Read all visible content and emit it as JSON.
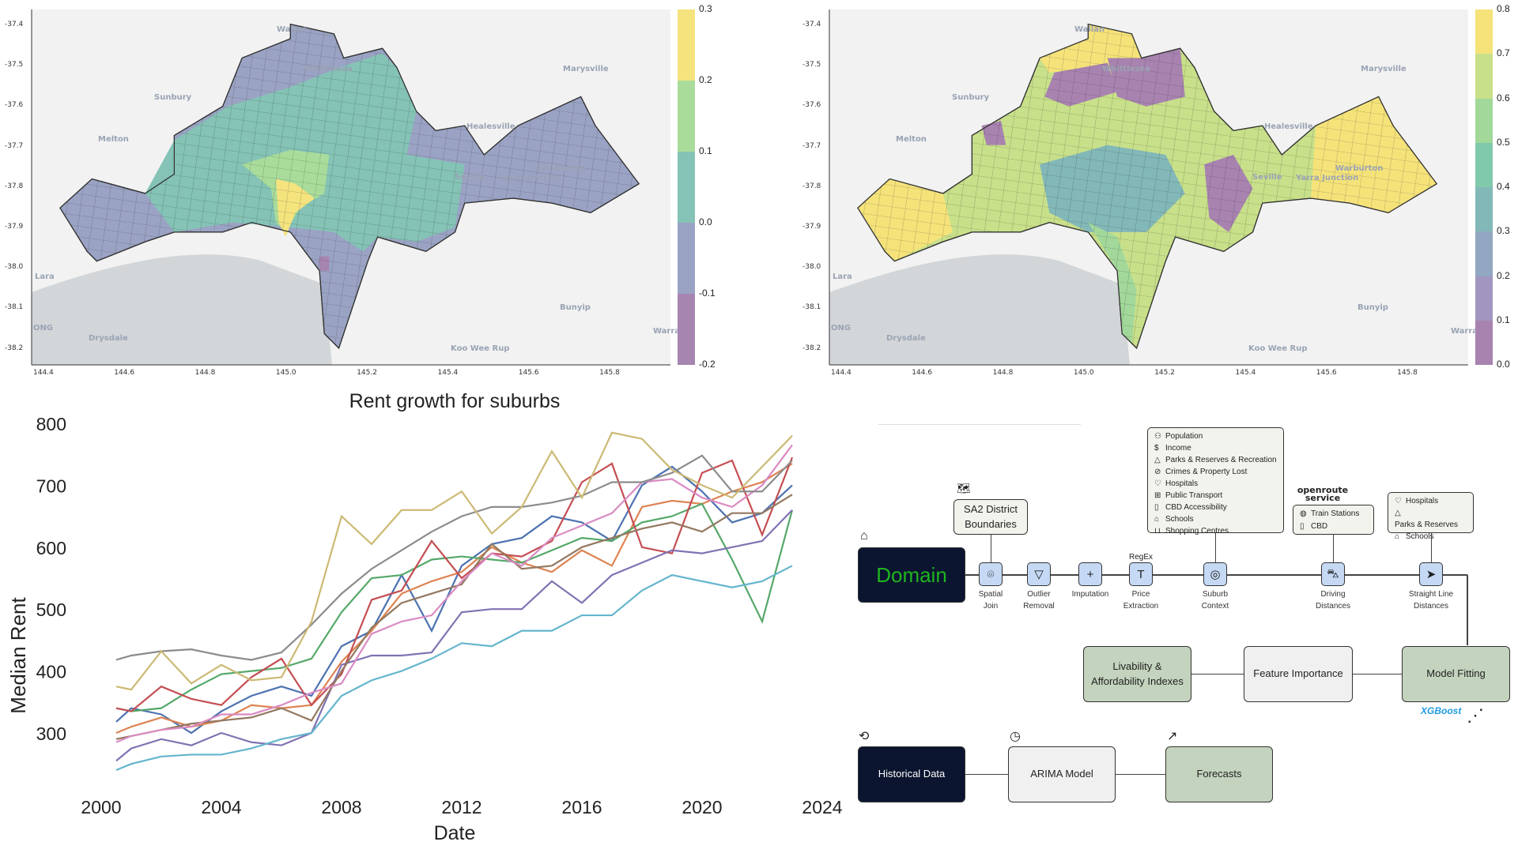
{
  "maps": [
    {
      "y_ticks": [
        "-37.4",
        "-37.5",
        "-37.6",
        "-37.7",
        "-37.8",
        "-37.9",
        "-38.0",
        "-38.1",
        "-38.2"
      ],
      "x_ticks": [
        "144.4",
        "144.6",
        "144.8",
        "145.0",
        "145.2",
        "145.4",
        "145.6",
        "145.8"
      ],
      "colorbar_ticks": [
        "0.3",
        "0.2",
        "0.1",
        "0.0",
        "-0.1",
        "-0.2"
      ],
      "colorbar_colors": [
        "#f5e37e",
        "#a9dc9a",
        "#84c3b5",
        "#9aa3c4",
        "#a685b0"
      ]
    },
    {
      "y_ticks": [
        "-37.4",
        "-37.5",
        "-37.6",
        "-37.7",
        "-37.8",
        "-37.9",
        "-38.0",
        "-38.1",
        "-38.2"
      ],
      "x_ticks": [
        "144.4",
        "144.6",
        "144.8",
        "145.0",
        "145.2",
        "145.4",
        "145.6",
        "145.8"
      ],
      "colorbar_ticks": [
        "0.8",
        "0.7",
        "0.6",
        "0.5",
        "0.4",
        "0.3",
        "0.2",
        "0.1",
        "0.0"
      ],
      "colorbar_colors": [
        "#f5e37a",
        "#c8e08a",
        "#a2d89a",
        "#80c9ab",
        "#83b8b8",
        "#93a6c2",
        "#a196bf",
        "#a883b0"
      ]
    }
  ],
  "places": [
    "Wallan",
    "Whittlesea",
    "Marysville",
    "Sunbury",
    "Healesville",
    "Melton",
    "Seville",
    "Yarra Junction",
    "Warburton",
    "Lara",
    "Bunyip",
    "ONG",
    "Drysdale",
    "Koo Wee Rup",
    "Warra"
  ],
  "chart_data": {
    "type": "line",
    "title": "Rent growth for suburbs",
    "xlabel": "Date",
    "ylabel": "Median Rent",
    "xlim": [
      2000,
      2024
    ],
    "ylim": [
      220,
      800
    ],
    "x_ticks": [
      "2000",
      "2004",
      "2008",
      "2012",
      "2016",
      "2020",
      "2024"
    ],
    "y_ticks": [
      "800",
      "700",
      "600",
      "500",
      "400",
      "300"
    ],
    "grid": false,
    "x": [
      2000.5,
      2001,
      2002,
      2003,
      2004,
      2005,
      2006,
      2007,
      2008,
      2009,
      2010,
      2011,
      2012,
      2013,
      2014,
      2015,
      2016,
      2017,
      2018,
      2019,
      2020,
      2021,
      2022,
      2023
    ],
    "series": [
      {
        "color": "#4c72b0",
        "values": [
          318,
          340,
          330,
          300,
          335,
          360,
          375,
          360,
          440,
          465,
          555,
          465,
          570,
          605,
          615,
          650,
          640,
          610,
          700,
          730,
          690,
          640,
          655,
          700
        ]
      },
      {
        "color": "#dd8452",
        "values": [
          300,
          310,
          325,
          310,
          320,
          345,
          340,
          345,
          415,
          465,
          525,
          545,
          560,
          600,
          575,
          560,
          595,
          570,
          665,
          675,
          670,
          690,
          705,
          735
        ]
      },
      {
        "color": "#55a868",
        "values": [
          340,
          335,
          340,
          370,
          395,
          400,
          405,
          420,
          495,
          550,
          555,
          580,
          585,
          580,
          575,
          595,
          615,
          610,
          640,
          650,
          670,
          580,
          480,
          660
        ]
      },
      {
        "color": "#c44e52",
        "values": [
          340,
          335,
          375,
          355,
          345,
          390,
          420,
          345,
          395,
          515,
          530,
          610,
          550,
          590,
          585,
          610,
          705,
          735,
          600,
          590,
          720,
          740,
          620,
          745
        ]
      },
      {
        "color": "#8172b3",
        "values": [
          255,
          275,
          290,
          280,
          300,
          285,
          280,
          300,
          410,
          425,
          425,
          430,
          495,
          500,
          500,
          545,
          510,
          555,
          575,
          595,
          590,
          600,
          610,
          660
        ]
      },
      {
        "color": "#937860",
        "values": [
          290,
          295,
          305,
          315,
          320,
          325,
          340,
          320,
          400,
          470,
          510,
          525,
          540,
          605,
          565,
          570,
          600,
          615,
          630,
          640,
          625,
          655,
          655,
          685
        ]
      },
      {
        "color": "#da8bc3",
        "values": [
          285,
          295,
          305,
          310,
          330,
          330,
          345,
          365,
          380,
          460,
          480,
          490,
          545,
          590,
          570,
          615,
          635,
          655,
          705,
          710,
          680,
          665,
          700,
          765
        ]
      },
      {
        "color": "#8c8c8c",
        "values": [
          418,
          425,
          432,
          435,
          425,
          418,
          430,
          475,
          525,
          565,
          595,
          625,
          650,
          665,
          665,
          672,
          683,
          705,
          705,
          720,
          748,
          690,
          690,
          740
        ]
      },
      {
        "color": "#ccb974",
        "values": [
          375,
          370,
          432,
          380,
          410,
          385,
          390,
          480,
          650,
          605,
          660,
          660,
          690,
          622,
          665,
          755,
          680,
          785,
          775,
          725,
          700,
          680,
          730,
          780
        ]
      },
      {
        "color": "#64b5cd",
        "values": [
          240,
          250,
          262,
          265,
          265,
          275,
          290,
          300,
          360,
          385,
          400,
          420,
          445,
          440,
          465,
          465,
          490,
          490,
          530,
          555,
          545,
          535,
          545,
          570
        ]
      }
    ]
  },
  "diagram": {
    "domain": "Domain",
    "sa2": [
      "SA2 District",
      "Boundaries"
    ],
    "context_list": [
      {
        "icon": "users-icon",
        "glyph": "⚇",
        "label": "Population"
      },
      {
        "icon": "dollar-icon",
        "glyph": "$",
        "label": "Income"
      },
      {
        "icon": "tree-icon",
        "glyph": "△",
        "label": "Parks & Reserves & Recreation"
      },
      {
        "icon": "cctv-icon",
        "glyph": "⊘",
        "label": "Crimes & Property Lost"
      },
      {
        "icon": "stethoscope-icon",
        "glyph": "♡",
        "label": "Hospitals"
      },
      {
        "icon": "bus-icon",
        "glyph": "⊞",
        "label": "Public Transport"
      },
      {
        "icon": "tablet-icon",
        "glyph": "▯",
        "label": "CBD Accessibility"
      },
      {
        "icon": "school-icon",
        "glyph": "⌂",
        "label": "Schools"
      },
      {
        "icon": "cart-icon",
        "glyph": "⊔",
        "label": "Shopping Centres"
      }
    ],
    "openroute": [
      "openroute",
      "service"
    ],
    "driving_list": [
      {
        "icon": "train-icon",
        "glyph": "◍",
        "label": "Train Stations"
      },
      {
        "icon": "tablet-icon",
        "glyph": "▯",
        "label": "CBD"
      }
    ],
    "straight_list": [
      {
        "icon": "stethoscope-icon",
        "glyph": "♡",
        "label": "Hospitals"
      },
      {
        "icon": "tree-icon",
        "glyph": "△",
        "label": "Parks & Reserves"
      },
      {
        "icon": "school-icon",
        "glyph": "⌂",
        "label": "Schools"
      }
    ],
    "regex": "RegEx",
    "nodes": [
      {
        "icon": "map-pin-icon",
        "glyph": "⌾",
        "label": [
          "Spatial",
          "Join"
        ]
      },
      {
        "icon": "filter-icon",
        "glyph": "▽",
        "label": [
          "Outlier",
          "Removal"
        ]
      },
      {
        "icon": "plus-icon",
        "glyph": "+",
        "label": [
          "Imputation",
          ""
        ]
      },
      {
        "icon": "text-icon",
        "glyph": "T",
        "label": [
          "Price",
          "Extraction"
        ]
      },
      {
        "icon": "radar-icon",
        "glyph": "◎",
        "label": [
          "Suburb",
          "Context"
        ]
      },
      {
        "icon": "car-icon",
        "glyph": "⛍",
        "label": [
          "Driving",
          "Distances"
        ]
      },
      {
        "icon": "navigation-icon",
        "glyph": "➤",
        "label": [
          "Straight Line",
          "Distances"
        ]
      }
    ],
    "model_fitting": "Model Fitting",
    "feature_importance": "Feature Importance",
    "livability": [
      "Livability &",
      "Affordability Indexes"
    ],
    "xgboost": "XGBoost",
    "historical": "Historical Data",
    "arima": "ARIMA Model",
    "forecasts": "Forecasts",
    "accent_green": "#1fb51f",
    "xgboost_color": "#1e9be0"
  }
}
